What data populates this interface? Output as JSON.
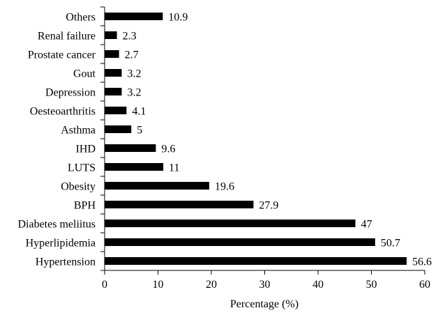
{
  "chart_data": {
    "type": "bar",
    "orientation": "horizontal",
    "categories": [
      "Others",
      "Renal failure",
      "Prostate cancer",
      "Gout",
      "Depression",
      "Oesteoarthritis",
      "Asthma",
      "IHD",
      "LUTS",
      "Obesity",
      "BPH",
      "Diabetes meliitus",
      "Hyperlipidemia",
      "Hypertension"
    ],
    "values": [
      10.9,
      2.3,
      2.7,
      3.2,
      3.2,
      4.1,
      5,
      9.6,
      11,
      19.6,
      27.9,
      47,
      50.7,
      56.6
    ],
    "data_labels": [
      "10.9",
      "2.3",
      "2.7",
      "3.2",
      "3.2",
      "4.1",
      "5",
      "9.6",
      "11",
      "19.6",
      "27.9",
      "47",
      "50.7",
      "56.6"
    ],
    "xlabel": "Percentage (%)",
    "ylabel": "",
    "title": "",
    "xlim": [
      0,
      60
    ],
    "xticks": [
      "0",
      "10",
      "20",
      "30",
      "40",
      "50",
      "60"
    ],
    "grid": false,
    "legend": "none",
    "bar_color": "#000000"
  }
}
